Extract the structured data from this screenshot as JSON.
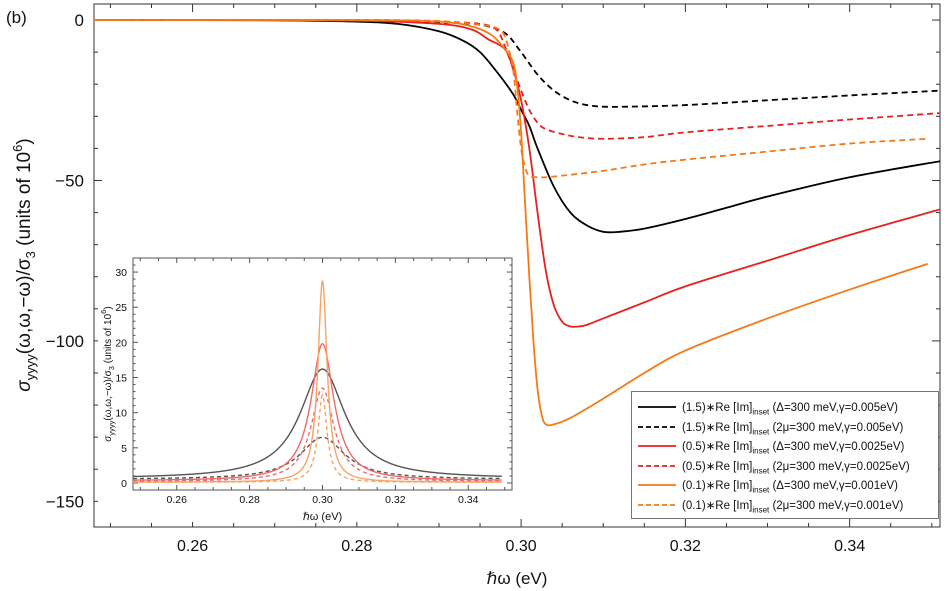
{
  "panel_label": "(b)",
  "chart_data": {
    "type": "line",
    "xlabel": "ℏω (eV)",
    "ylabel": "σyyyy(ω,ω,−ω)/σ3 (units of 10^6)",
    "ylabel_parts": {
      "sigma": "σ",
      "sub": "yyyy",
      "args": "(ω,ω,−ω)/σ",
      "sub3": "3",
      "units": " (units of 10",
      "exp": "6",
      "close": ")"
    },
    "xlim": [
      0.248,
      0.351
    ],
    "ylim": [
      -158,
      5
    ],
    "xticks": [
      0.26,
      0.28,
      0.3,
      0.32,
      0.34
    ],
    "xtick_labels": [
      "0.26",
      "0.28",
      "0.30",
      "0.32",
      "0.34"
    ],
    "yticks": [
      0,
      -50,
      -100,
      -150
    ],
    "ytick_labels": [
      "0",
      "−50",
      "−100",
      "−150"
    ],
    "series": [
      {
        "name": "(1.5)∗Re [Im]inset (Δ=300 meV,γ=0.005eV)",
        "color": "#000000",
        "dash": "solid",
        "x": [
          0.248,
          0.26,
          0.27,
          0.28,
          0.285,
          0.29,
          0.293,
          0.295,
          0.297,
          0.299,
          0.3,
          0.301,
          0.302,
          0.304,
          0.306,
          0.308,
          0.31,
          0.312,
          0.315,
          0.32,
          0.325,
          0.33,
          0.34,
          0.351
        ],
        "y": [
          0,
          0,
          -0.1,
          -0.5,
          -1.2,
          -3.5,
          -6.5,
          -10,
          -16,
          -23,
          -28,
          -33,
          -40,
          -52,
          -60,
          -64,
          -66,
          -66,
          -65,
          -62,
          -58.5,
          -55,
          -49,
          -44
        ]
      },
      {
        "name": "(1.5)∗Re [Im]inset (2μ=300 meV,γ=0.005eV)",
        "color": "#000000",
        "dash": "dashed",
        "x": [
          0.248,
          0.27,
          0.28,
          0.29,
          0.295,
          0.298,
          0.3,
          0.302,
          0.304,
          0.306,
          0.308,
          0.31,
          0.313,
          0.32,
          0.33,
          0.34,
          0.351
        ],
        "y": [
          0,
          0,
          -0.2,
          -0.7,
          -1.5,
          -4,
          -10,
          -17,
          -22,
          -25,
          -26.5,
          -27,
          -27,
          -26.5,
          -25,
          -23.5,
          -22
        ]
      },
      {
        "name": "(0.5)∗Re [Im]inset (Δ=300 meV,γ=0.0025eV)",
        "color": "#e8201c",
        "dash": "solid",
        "x": [
          0.248,
          0.26,
          0.28,
          0.29,
          0.294,
          0.296,
          0.298,
          0.299,
          0.3,
          0.301,
          0.302,
          0.303,
          0.304,
          0.305,
          0.306,
          0.307,
          0.308,
          0.31,
          0.315,
          0.32,
          0.33,
          0.34,
          0.351
        ],
        "y": [
          0,
          0,
          -0.2,
          -1.2,
          -3,
          -6,
          -9,
          -15,
          -25,
          -40,
          -60,
          -78,
          -89,
          -94,
          -95.5,
          -95.5,
          -95,
          -93,
          -88,
          -83,
          -75,
          -67,
          -59
        ]
      },
      {
        "name": "(0.5)∗Re [Im]inset (2μ=300 meV,γ=0.0025eV)",
        "color": "#e8201c",
        "dash": "dashed",
        "x": [
          0.248,
          0.28,
          0.29,
          0.295,
          0.297,
          0.298,
          0.299,
          0.3,
          0.301,
          0.302,
          0.303,
          0.305,
          0.307,
          0.31,
          0.315,
          0.32,
          0.33,
          0.34,
          0.351
        ],
        "y": [
          0,
          0,
          -0.5,
          -1.2,
          -3,
          -8,
          -15,
          -22,
          -28,
          -32,
          -34,
          -35.5,
          -36.5,
          -37,
          -36.5,
          -35,
          -33,
          -31,
          -29
        ]
      },
      {
        "name": "(0.1)∗Re [Im]inset (Δ=300 meV,γ=0.001eV)",
        "color": "#f47a17",
        "dash": "solid",
        "x": [
          0.248,
          0.28,
          0.29,
          0.294,
          0.296,
          0.297,
          0.298,
          0.299,
          0.2995,
          0.3,
          0.3005,
          0.301,
          0.3015,
          0.302,
          0.3025,
          0.303,
          0.304,
          0.306,
          0.31,
          0.315,
          0.32,
          0.33,
          0.34,
          0.3495
        ],
        "y": [
          0,
          0,
          -0.5,
          -2,
          -4,
          -6,
          -9,
          -13,
          -20,
          -35,
          -58,
          -80,
          -100,
          -115,
          -123,
          -126,
          -126,
          -124,
          -118,
          -110,
          -103,
          -93,
          -84,
          -76
        ]
      },
      {
        "name": "(0.1)∗Re [Im]inset (2μ=300 meV,γ=0.001eV)",
        "color": "#f47a17",
        "dash": "dashed",
        "x": [
          0.248,
          0.28,
          0.29,
          0.295,
          0.297,
          0.298,
          0.299,
          0.2995,
          0.3,
          0.3005,
          0.301,
          0.302,
          0.303,
          0.305,
          0.31,
          0.315,
          0.32,
          0.33,
          0.34,
          0.3495
        ],
        "y": [
          0,
          0,
          -0.3,
          -1.5,
          -2.5,
          -5,
          -15,
          -28,
          -40,
          -46,
          -48.5,
          -49,
          -49,
          -48.5,
          -47,
          -45,
          -43.5,
          -41,
          -38.5,
          -37
        ]
      }
    ],
    "inset": {
      "xlabel": "ℏω (eV)",
      "ylabel": "σyyyy(ω,ω,−ω)/σ3 (units of 10^6)",
      "ylabel_parts": {
        "sigma": "σ",
        "sub": "yyyy",
        "args": "(ω,ω,−ω)/σ",
        "sub3": "3",
        "units": " (units of 10",
        "exp": "6",
        "close": ")"
      },
      "xlim": [
        0.248,
        0.352
      ],
      "ylim": [
        -1,
        32
      ],
      "xticks": [
        0.26,
        0.28,
        0.3,
        0.32,
        0.34
      ],
      "xtick_labels": [
        "0.26",
        "0.28",
        "0.30",
        "0.32",
        "0.34"
      ],
      "yticks": [
        0,
        5,
        10,
        15,
        20,
        25,
        30
      ],
      "ytick_labels": [
        "0",
        "5",
        "10",
        "15",
        "20",
        "25",
        "30"
      ],
      "series": [
        {
          "color": "#555555",
          "dash": "solid",
          "peak": 16.2,
          "gamma": 0.0075,
          "base": 0.6,
          "x0": 0.3
        },
        {
          "color": "#555555",
          "dash": "dashed",
          "peak": 6.5,
          "gamma": 0.0075,
          "base": 0.5,
          "x0": 0.3
        },
        {
          "color": "#ef6a6a",
          "dash": "solid",
          "peak": 19.8,
          "gamma": 0.0038,
          "base": 0.3,
          "x0": 0.3
        },
        {
          "color": "#ef6a6a",
          "dash": "dashed",
          "peak": 13.5,
          "gamma": 0.0038,
          "base": 0.2,
          "x0": 0.3
        },
        {
          "color": "#f7a366",
          "dash": "solid",
          "peak": 28.8,
          "gamma": 0.0015,
          "base": 0.1,
          "x0": 0.3
        },
        {
          "color": "#f7a366",
          "dash": "dashed",
          "peak": 12.5,
          "gamma": 0.0015,
          "base": 0.1,
          "x0": 0.3
        }
      ]
    },
    "legend": [
      {
        "coef": "(1.5)",
        "rest": "∗Re [Im]",
        "sub": "inset",
        "params": " (Δ=300 meV,γ=0.005eV)",
        "color": "#000000",
        "dash": "solid"
      },
      {
        "coef": "(1.5)",
        "rest": "∗Re [Im]",
        "sub": "inset",
        "params": " (2μ=300 meV,γ=0.005eV)",
        "color": "#000000",
        "dash": "dashed"
      },
      {
        "coef": "(0.5)",
        "rest": "∗Re [Im]",
        "sub": "inset",
        "params": " (Δ=300 meV,γ=0.0025eV)",
        "color": "#e8201c",
        "dash": "solid"
      },
      {
        "coef": "(0.5)",
        "rest": "∗Re [Im]",
        "sub": "inset",
        "params": " (2μ=300 meV,γ=0.0025eV)",
        "color": "#e8201c",
        "dash": "dashed"
      },
      {
        "coef": "(0.1)",
        "rest": "∗Re [Im]",
        "sub": "inset",
        "params": " (Δ=300 meV,γ=0.001eV)",
        "color": "#f47a17",
        "dash": "solid"
      },
      {
        "coef": "(0.1)",
        "rest": "∗Re [Im]",
        "sub": "inset",
        "params": " (2μ=300 meV,γ=0.001eV)",
        "color": "#f47a17",
        "dash": "dashed"
      }
    ],
    "legend_position": "bottom-right",
    "grid": false
  }
}
